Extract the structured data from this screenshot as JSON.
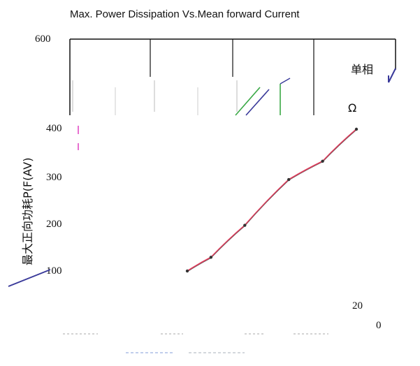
{
  "chart_data": {
    "type": "line",
    "title": "Max. Power Dissipation Vs.Mean forward Current",
    "ylabel": "最大正向功耗P(F(AV)",
    "xlabel": "",
    "legend": "单相",
    "legend_marker": "Ω",
    "y_ticks": [
      "600",
      "400",
      "300",
      "200",
      "100"
    ],
    "x_ticks": [
      "20",
      "0"
    ],
    "series": [
      {
        "x": [
          0,
          14,
          34,
          60,
          80,
          100
        ],
        "y": [
          100,
          130,
          200,
          300,
          340,
          410
        ]
      }
    ],
    "colors": {
      "line": "#e03a5a",
      "points": "#333333",
      "axis": "#111111",
      "accent_blue": "#3a3a9a",
      "accent_green": "#39a845"
    }
  }
}
